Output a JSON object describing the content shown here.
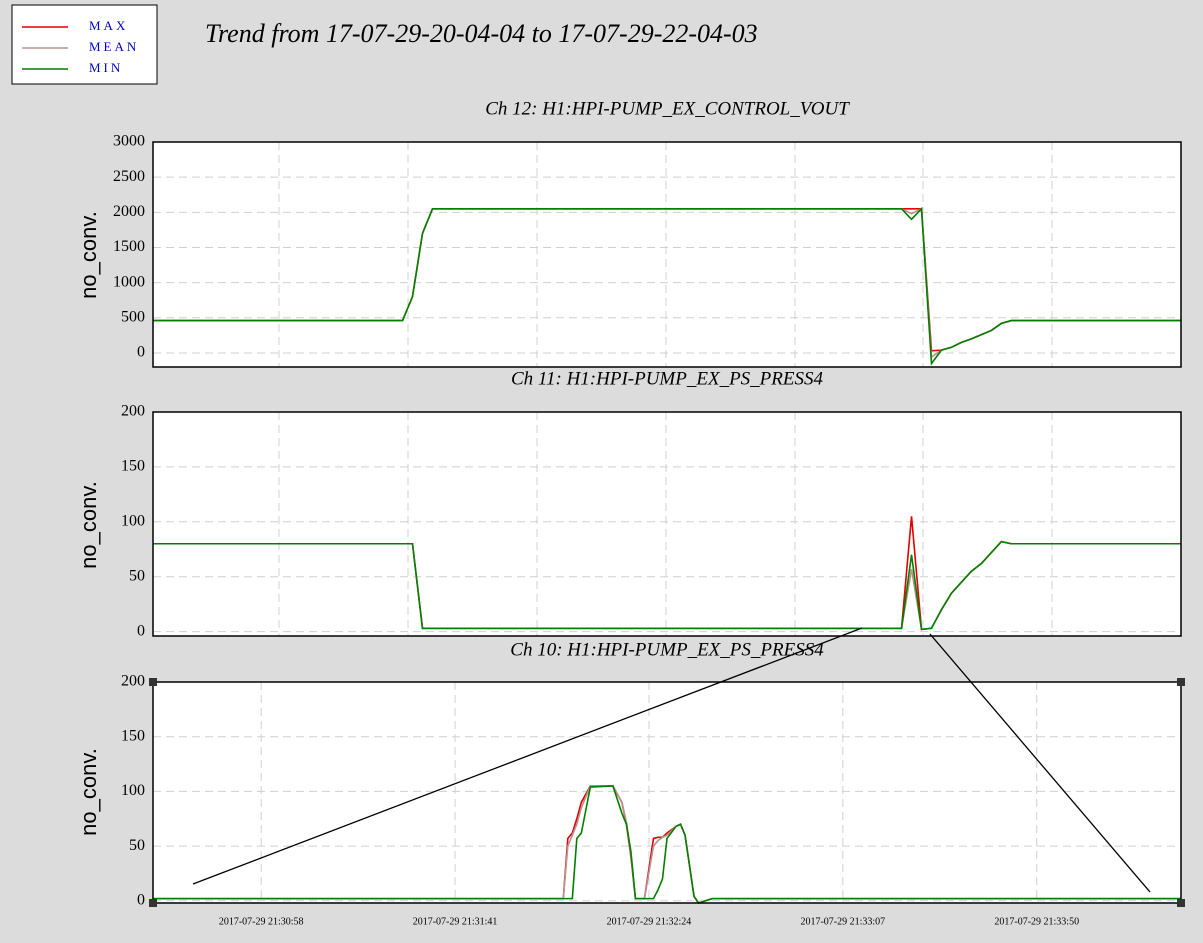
{
  "title": "Trend from 17-07-29-20-04-04 to 17-07-29-22-04-03",
  "chart_data": [
    {
      "type": "line",
      "title": "Ch 12: H1:HPI-PUMP_EX_CONTROL_VOUT",
      "y_label": "no_conv.",
      "ylim": [
        -200,
        3000
      ],
      "yticks": [
        0,
        500,
        1000,
        1500,
        2000,
        2500,
        3000
      ],
      "series": [
        {
          "name": "MAX",
          "color": "#e00000",
          "values": [
            460,
            460,
            460,
            460,
            460,
            460,
            460,
            460,
            460,
            460,
            460,
            460,
            460,
            460,
            460,
            460,
            460,
            460,
            460,
            460,
            460,
            460,
            460,
            460,
            460,
            460,
            800,
            1700,
            2050,
            2050,
            2050,
            2050,
            2050,
            2050,
            2050,
            2050,
            2050,
            2050,
            2050,
            2050,
            2050,
            2050,
            2050,
            2050,
            2050,
            2050,
            2050,
            2050,
            2050,
            2050,
            2050,
            2050,
            2050,
            2050,
            2050,
            2050,
            2050,
            2050,
            2050,
            2050,
            2050,
            2050,
            2050,
            2050,
            2050,
            2050,
            2050,
            2050,
            2050,
            2050,
            2050,
            2050,
            2050,
            2050,
            2050,
            2050,
            2050,
            2050,
            30,
            40,
            80,
            150,
            200,
            260,
            320,
            420,
            460,
            460,
            460,
            460,
            460,
            460,
            460,
            460,
            460,
            460,
            460,
            460,
            460,
            460,
            460,
            460,
            460,
            460
          ]
        },
        {
          "name": "MEAN",
          "color": "#bc8f8f",
          "values": [
            460,
            460,
            460,
            460,
            460,
            460,
            460,
            460,
            460,
            460,
            460,
            460,
            460,
            460,
            460,
            460,
            460,
            460,
            460,
            460,
            460,
            460,
            460,
            460,
            460,
            460,
            800,
            1700,
            2050,
            2050,
            2050,
            2050,
            2050,
            2050,
            2050,
            2050,
            2050,
            2050,
            2050,
            2050,
            2050,
            2050,
            2050,
            2050,
            2050,
            2050,
            2050,
            2050,
            2050,
            2050,
            2050,
            2050,
            2050,
            2050,
            2050,
            2050,
            2050,
            2050,
            2050,
            2050,
            2050,
            2050,
            2050,
            2050,
            2050,
            2050,
            2050,
            2050,
            2050,
            2050,
            2050,
            2050,
            2050,
            2050,
            2050,
            2050,
            1980,
            2050,
            -60,
            40,
            80,
            150,
            200,
            260,
            320,
            420,
            460,
            460,
            460,
            460,
            460,
            460,
            460,
            460,
            460,
            460,
            460,
            460,
            460,
            460,
            460,
            460,
            460,
            460
          ]
        },
        {
          "name": "MIN",
          "color": "#008000",
          "values": [
            460,
            460,
            460,
            460,
            460,
            460,
            460,
            460,
            460,
            460,
            460,
            460,
            460,
            460,
            460,
            460,
            460,
            460,
            460,
            460,
            460,
            460,
            460,
            460,
            460,
            460,
            800,
            1700,
            2050,
            2050,
            2050,
            2050,
            2050,
            2050,
            2050,
            2050,
            2050,
            2050,
            2050,
            2050,
            2050,
            2050,
            2050,
            2050,
            2050,
            2050,
            2050,
            2050,
            2050,
            2050,
            2050,
            2050,
            2050,
            2050,
            2050,
            2050,
            2050,
            2050,
            2050,
            2050,
            2050,
            2050,
            2050,
            2050,
            2050,
            2050,
            2050,
            2050,
            2050,
            2050,
            2050,
            2050,
            2050,
            2050,
            2050,
            2050,
            1900,
            2050,
            -150,
            40,
            80,
            150,
            200,
            260,
            320,
            420,
            460,
            460,
            460,
            460,
            460,
            460,
            460,
            460,
            460,
            460,
            460,
            460,
            460,
            460,
            460,
            460,
            460,
            460
          ]
        }
      ]
    },
    {
      "type": "line",
      "title": "Ch 11: H1:HPI-PUMP_EX_PS_PRESS4",
      "y_label": "no_conv.",
      "ylim": [
        -4,
        200
      ],
      "yticks": [
        0,
        50,
        100,
        150,
        200
      ],
      "series": [
        {
          "name": "MAX",
          "color": "#e00000",
          "values": [
            80,
            80,
            80,
            80,
            80,
            80,
            80,
            80,
            80,
            80,
            80,
            80,
            80,
            80,
            80,
            80,
            80,
            80,
            80,
            80,
            80,
            80,
            80,
            80,
            80,
            80,
            80,
            3,
            3,
            3,
            3,
            3,
            3,
            3,
            3,
            3,
            3,
            3,
            3,
            3,
            3,
            3,
            3,
            3,
            3,
            3,
            3,
            3,
            3,
            3,
            3,
            3,
            3,
            3,
            3,
            3,
            3,
            3,
            3,
            3,
            3,
            3,
            3,
            3,
            3,
            3,
            3,
            3,
            3,
            3,
            3,
            3,
            3,
            3,
            3,
            3,
            105,
            2,
            3,
            20,
            35,
            45,
            55,
            62,
            72,
            82,
            80,
            80,
            80,
            80,
            80,
            80,
            80,
            80,
            80,
            80,
            80,
            80,
            80,
            80,
            80,
            80,
            80,
            80
          ]
        },
        {
          "name": "MEAN",
          "color": "#bc8f8f",
          "values": [
            80,
            80,
            80,
            80,
            80,
            80,
            80,
            80,
            80,
            80,
            80,
            80,
            80,
            80,
            80,
            80,
            80,
            80,
            80,
            80,
            80,
            80,
            80,
            80,
            80,
            80,
            80,
            3,
            3,
            3,
            3,
            3,
            3,
            3,
            3,
            3,
            3,
            3,
            3,
            3,
            3,
            3,
            3,
            3,
            3,
            3,
            3,
            3,
            3,
            3,
            3,
            3,
            3,
            3,
            3,
            3,
            3,
            3,
            3,
            3,
            3,
            3,
            3,
            3,
            3,
            3,
            3,
            3,
            3,
            3,
            3,
            3,
            3,
            3,
            3,
            3,
            57,
            2,
            3,
            20,
            35,
            45,
            55,
            62,
            72,
            82,
            80,
            80,
            80,
            80,
            80,
            80,
            80,
            80,
            80,
            80,
            80,
            80,
            80,
            80,
            80,
            80,
            80,
            80
          ]
        },
        {
          "name": "MIN",
          "color": "#008000",
          "values": [
            80,
            80,
            80,
            80,
            80,
            80,
            80,
            80,
            80,
            80,
            80,
            80,
            80,
            80,
            80,
            80,
            80,
            80,
            80,
            80,
            80,
            80,
            80,
            80,
            80,
            80,
            80,
            3,
            3,
            3,
            3,
            3,
            3,
            3,
            3,
            3,
            3,
            3,
            3,
            3,
            3,
            3,
            3,
            3,
            3,
            3,
            3,
            3,
            3,
            3,
            3,
            3,
            3,
            3,
            3,
            3,
            3,
            3,
            3,
            3,
            3,
            3,
            3,
            3,
            3,
            3,
            3,
            3,
            3,
            3,
            3,
            3,
            3,
            3,
            3,
            3,
            70,
            2,
            3,
            20,
            35,
            45,
            55,
            62,
            72,
            82,
            80,
            80,
            80,
            80,
            80,
            80,
            80,
            80,
            80,
            80,
            80,
            80,
            80,
            80,
            80,
            80,
            80,
            80
          ]
        }
      ]
    },
    {
      "type": "line",
      "title": "Ch 10: H1:HPI-PUMP_EX_PS_PRESS4",
      "y_label": "no_conv.",
      "ylim": [
        -2,
        200
      ],
      "yticks": [
        0,
        50,
        100,
        150,
        200
      ],
      "xlim": [
        "2017-07-29 21:30:34",
        "2017-07-29 21:34:22"
      ],
      "xticks": [
        "2017-07-29 21:30:58",
        "2017-07-29 21:31:41",
        "2017-07-29 21:32:24",
        "2017-07-29 21:33:07",
        "2017-07-29 21:33:50"
      ],
      "x": [
        "2017-07-29 21:30:34",
        "2017-07-29 21:32:05",
        "2017-07-29 21:32:06",
        "2017-07-29 21:32:07",
        "2017-07-29 21:32:08",
        "2017-07-29 21:32:09",
        "2017-07-29 21:32:11",
        "2017-07-29 21:32:16",
        "2017-07-29 21:32:18",
        "2017-07-29 21:32:19",
        "2017-07-29 21:32:20",
        "2017-07-29 21:32:21",
        "2017-07-29 21:32:23",
        "2017-07-29 21:32:25",
        "2017-07-29 21:32:26",
        "2017-07-29 21:32:27",
        "2017-07-29 21:32:28",
        "2017-07-29 21:32:30",
        "2017-07-29 21:32:31",
        "2017-07-29 21:32:32",
        "2017-07-29 21:32:34",
        "2017-07-29 21:32:35",
        "2017-07-29 21:32:38",
        "2017-07-29 21:34:22"
      ],
      "series": [
        {
          "name": "MAX",
          "color": "#e00000",
          "values": [
            2,
            2,
            57,
            62,
            75,
            90,
            105,
            105,
            90,
            70,
            40,
            2,
            2,
            57,
            58,
            58,
            62,
            68,
            70,
            60,
            4,
            -2,
            2,
            2
          ]
        },
        {
          "name": "MEAN",
          "color": "#bc8f8f",
          "values": [
            2,
            2,
            50,
            60,
            70,
            85,
            105,
            105,
            90,
            72,
            42,
            2,
            2,
            50,
            55,
            58,
            60,
            68,
            70,
            60,
            4,
            -2,
            2,
            2
          ]
        },
        {
          "name": "MIN",
          "color": "#008000",
          "values": [
            2,
            2,
            2,
            2,
            57,
            62,
            104,
            105,
            80,
            70,
            45,
            2,
            2,
            2,
            10,
            20,
            57,
            68,
            70,
            60,
            4,
            -2,
            2,
            2
          ]
        }
      ]
    }
  ]
}
